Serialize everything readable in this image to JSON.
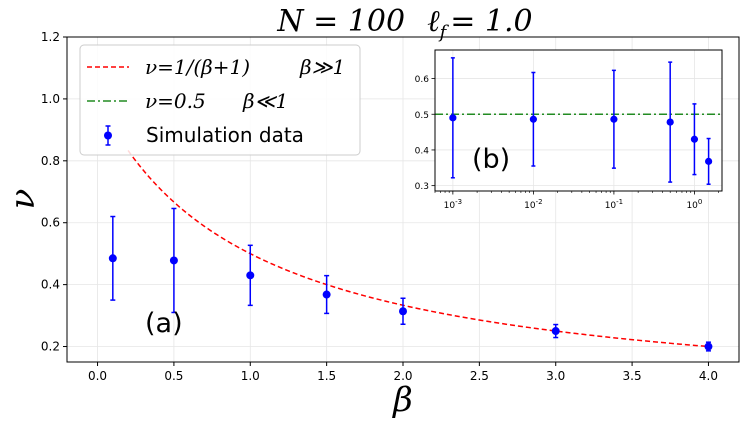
{
  "chart_data": [
    {
      "panel": "main",
      "type": "scatter",
      "title": "N = 100   ℓ_f = 1.0",
      "title_parts": [
        "N = 100",
        "ℓ",
        "f",
        "= 1.0"
      ],
      "xlabel": "β",
      "ylabel": "ν",
      "xlim": [
        -0.2,
        4.2
      ],
      "ylim": [
        0.15,
        1.2
      ],
      "xticks": [
        0.0,
        0.5,
        1.0,
        1.5,
        2.0,
        2.5,
        3.0,
        3.5,
        4.0
      ],
      "xtick_labels": [
        "0.0",
        "0.5",
        "1.0",
        "1.5",
        "2.0",
        "2.5",
        "3.0",
        "3.5",
        "4.0"
      ],
      "yticks": [
        0.2,
        0.4,
        0.6,
        0.8,
        1.0,
        1.2
      ],
      "ytick_labels": [
        "0.2",
        "0.4",
        "0.6",
        "0.8",
        "1.0",
        "1.2"
      ],
      "grid": true,
      "legend_position": "upper-left",
      "panel_label": "(a)",
      "series": [
        {
          "name": "Simulation data",
          "type": "errorbar",
          "color": "#0000ff",
          "x": [
            0.1,
            0.5,
            1.0,
            1.5,
            2.0,
            3.0,
            4.0
          ],
          "y": [
            0.485,
            0.478,
            0.43,
            0.368,
            0.314,
            0.25,
            0.2
          ],
          "yerr": [
            0.135,
            0.168,
            0.097,
            0.061,
            0.042,
            0.021,
            0.014
          ]
        },
        {
          "name": "ν = 1/(β+1)    β ≫ 1",
          "legend_math": "ν=1/(β+1)",
          "legend_cond": "β≫1",
          "type": "line",
          "style": "dashed",
          "color": "#ff0000",
          "formula": "1/(beta+1)",
          "x_range": [
            0.2,
            4.0
          ]
        },
        {
          "name": "ν = 0.5    β ≪ 1",
          "legend_math": "ν=0.5",
          "legend_cond": "β≪1",
          "type": "line",
          "style": "dashdot",
          "color": "#228b22",
          "value": 0.5
        }
      ]
    },
    {
      "panel": "inset",
      "type": "scatter",
      "x_scale": "log",
      "xlim": [
        0.0006,
        2.2
      ],
      "ylim": [
        0.285,
        0.68
      ],
      "xticks": [
        0.001,
        0.01,
        0.1,
        1
      ],
      "xtick_labels": [
        {
          "base": "10",
          "exp": "-3"
        },
        {
          "base": "10",
          "exp": "-2"
        },
        {
          "base": "10",
          "exp": "-1"
        },
        {
          "base": "10",
          "exp": "0"
        }
      ],
      "yticks": [
        0.3,
        0.4,
        0.5,
        0.6
      ],
      "ytick_labels": [
        "0.3",
        "0.4",
        "0.5",
        "0.6"
      ],
      "grid": true,
      "panel_label": "(b)",
      "series": [
        {
          "name": "Simulation data",
          "type": "errorbar",
          "color": "#0000ff",
          "x": [
            0.001,
            0.01,
            0.1,
            0.5,
            1.0,
            1.5
          ],
          "y": [
            0.49,
            0.486,
            0.486,
            0.478,
            0.43,
            0.368
          ],
          "yerr": [
            0.168,
            0.131,
            0.137,
            0.168,
            0.099,
            0.064
          ]
        },
        {
          "name": "ν = 0.5",
          "type": "line",
          "style": "dashdot",
          "color": "#228b22",
          "value": 0.5
        }
      ]
    }
  ]
}
